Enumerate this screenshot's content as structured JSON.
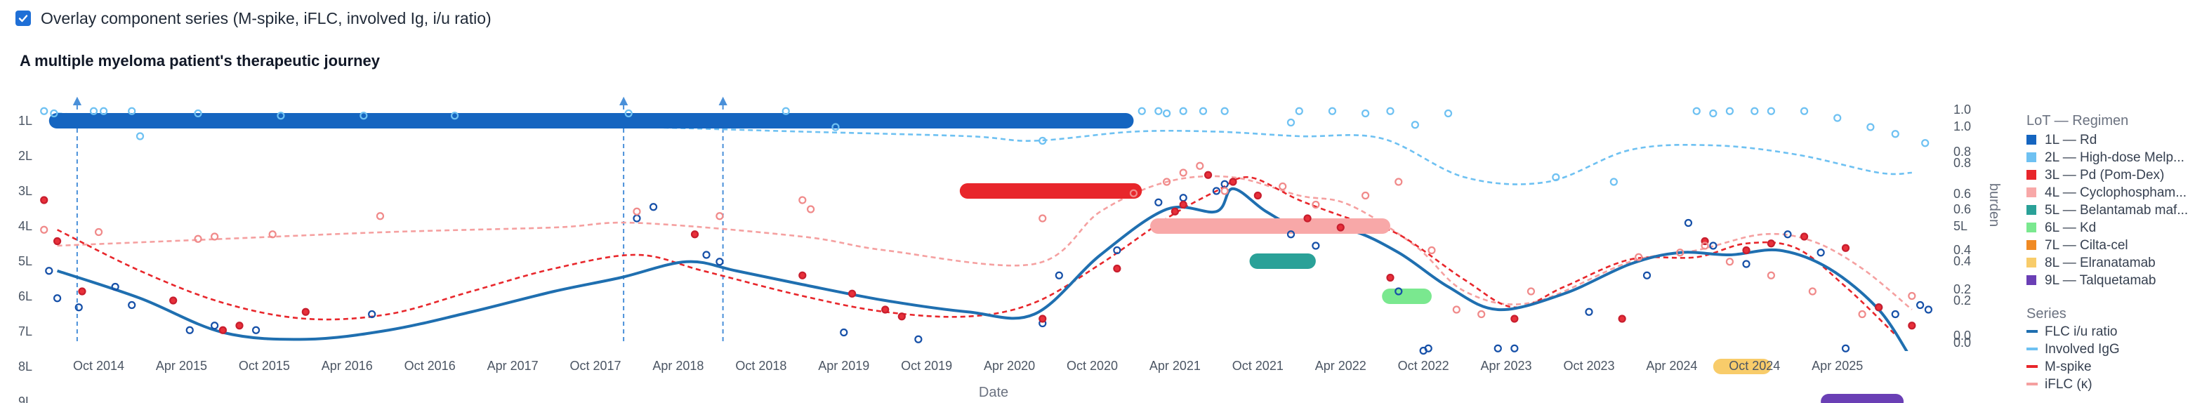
{
  "toggle": {
    "label": "Overlay component series (M-spike, iFLC, involved Ig, i/u ratio)",
    "checked": true
  },
  "chart_data": {
    "type": "line",
    "title": "A multiple myeloma patient's therapeutic journey",
    "xlabel": "Date",
    "y2label": "burden",
    "x_ticks": [
      "Oct 2014",
      "Apr 2015",
      "Oct 2015",
      "Apr 2016",
      "Oct 2016",
      "Apr 2017",
      "Oct 2017",
      "Apr 2018",
      "Oct 2018",
      "Apr 2019",
      "Oct 2019",
      "Apr 2020",
      "Oct 2020",
      "Apr 2021",
      "Oct 2021",
      "Apr 2022",
      "Oct 2022",
      "Apr 2023",
      "Oct 2023",
      "Apr 2024",
      "Oct 2024",
      "Apr 2025"
    ],
    "xlim": [
      2014.4,
      2026.0
    ],
    "lines_of_therapy": [
      "1L",
      "2L",
      "3L",
      "4L",
      "5L",
      "6L",
      "7L",
      "8L",
      "9L"
    ],
    "right_ticks": [
      "1.0",
      "1.0",
      "0.8",
      "0.8",
      "0.6",
      "0.6",
      "5L",
      "0.4",
      "0.4",
      "0.2",
      "0.2",
      "0.0",
      "0.0"
    ],
    "ylim": [
      0,
      1
    ],
    "regimen_legend_title": "LoT — Regimen",
    "regimens": [
      {
        "lot": "1L",
        "label": "1L — Rd",
        "color": "#1565c0",
        "start": 2014.45,
        "end": 2021.0
      },
      {
        "lot": "2L",
        "label": "2L — High-dose Melp...",
        "color": "#6ec1f2",
        "start": null,
        "end": null
      },
      {
        "lot": "3L",
        "label": "3L — Pd (Pom-Dex)",
        "color": "#e8262b",
        "start": 2019.95,
        "end": 2021.05
      },
      {
        "lot": "4L",
        "label": "4L — Cyclophospham...",
        "color": "#f8a8a8",
        "start": 2021.1,
        "end": 2022.55
      },
      {
        "lot": "5L",
        "label": "5L — Belantamab maf...",
        "color": "#2aa198",
        "start": 2021.7,
        "end": 2022.1
      },
      {
        "lot": "6L",
        "label": "6L — Kd",
        "color": "#7ae88f",
        "start": 2022.5,
        "end": 2022.8
      },
      {
        "lot": "7L",
        "label": "7L — Cilta-cel",
        "color": "#f08a24",
        "start": null,
        "end": null
      },
      {
        "lot": "8L",
        "label": "8L — Elranatamab",
        "color": "#f8cc6a",
        "start": 2024.5,
        "end": 2024.85
      },
      {
        "lot": "9L",
        "label": "9L — Talquetamab",
        "color": "#6a3fb5",
        "start": 2025.15,
        "end": 2025.65
      }
    ],
    "series_legend_title": "Series",
    "series": [
      {
        "name": "FLC i/u ratio",
        "color": "#1f6fb0",
        "style": "solid",
        "x": [
          2014.5,
          2015.0,
          2015.5,
          2016.0,
          2016.5,
          2017.0,
          2017.5,
          2017.9,
          2018.3,
          2018.6,
          2019.0,
          2019.5,
          2020.0,
          2020.4,
          2020.8,
          2021.2,
          2021.5,
          2021.6,
          2021.8,
          2022.0,
          2022.3,
          2022.6,
          2022.9,
          2023.2,
          2023.6,
          2024.0,
          2024.3,
          2024.6,
          2024.9,
          2025.2,
          2025.5,
          2025.7
        ],
        "y": [
          0.29,
          0.17,
          0.02,
          -0.01,
          0.03,
          0.11,
          0.2,
          0.26,
          0.33,
          0.29,
          0.23,
          0.16,
          0.11,
          0.1,
          0.36,
          0.56,
          0.55,
          0.65,
          0.55,
          0.48,
          0.47,
          0.37,
          0.22,
          0.12,
          0.19,
          0.32,
          0.37,
          0.36,
          0.38,
          0.3,
          0.12,
          -0.1
        ]
      },
      {
        "name": "Involved IgG",
        "color": "#6ec1f2",
        "style": "dashed",
        "x": [
          2014.5,
          2015.0,
          2015.5,
          2016.0,
          2017.0,
          2018.0,
          2019.0,
          2020.0,
          2020.4,
          2021.0,
          2021.5,
          2022.0,
          2022.5,
          2023.0,
          2023.5,
          2024.0,
          2024.5,
          2025.0,
          2025.5,
          2025.7
        ],
        "y": [
          0.98,
          0.96,
          0.95,
          0.94,
          0.93,
          0.92,
          0.9,
          0.88,
          0.86,
          0.9,
          0.9,
          0.88,
          0.87,
          0.7,
          0.68,
          0.82,
          0.84,
          0.8,
          0.72,
          0.72
        ]
      },
      {
        "name": "M-spike",
        "color": "#e8262b",
        "style": "dashed",
        "x": [
          2014.5,
          2015.0,
          2015.5,
          2016.0,
          2016.5,
          2017.0,
          2017.5,
          2018.0,
          2018.4,
          2019.0,
          2019.5,
          2020.0,
          2020.4,
          2020.8,
          2021.2,
          2021.5,
          2021.7,
          2022.0,
          2022.3,
          2022.6,
          2023.0,
          2023.3,
          2023.6,
          2024.0,
          2024.4,
          2024.7,
          2025.0,
          2025.3,
          2025.6
        ],
        "y": [
          0.47,
          0.29,
          0.15,
          0.08,
          0.1,
          0.2,
          0.3,
          0.36,
          0.29,
          0.18,
          0.11,
          0.09,
          0.15,
          0.32,
          0.52,
          0.64,
          0.7,
          0.6,
          0.52,
          0.45,
          0.25,
          0.13,
          0.22,
          0.34,
          0.35,
          0.41,
          0.39,
          0.22,
          0.01
        ]
      },
      {
        "name": "iFLC (κ)",
        "color": "#f5a0a0",
        "style": "dashed",
        "x": [
          2014.5,
          2015.5,
          2016.5,
          2017.5,
          2018.0,
          2019.0,
          2019.5,
          2020.4,
          2020.8,
          2021.2,
          2021.6,
          2022.0,
          2022.3,
          2022.7,
          2023.0,
          2023.4,
          2024.0,
          2024.4,
          2024.8,
          2025.1,
          2025.4,
          2025.7
        ],
        "y": [
          0.4,
          0.43,
          0.46,
          0.48,
          0.5,
          0.44,
          0.38,
          0.32,
          0.55,
          0.68,
          0.7,
          0.62,
          0.58,
          0.4,
          0.2,
          0.15,
          0.33,
          0.38,
          0.45,
          0.42,
          0.3,
          0.12
        ]
      }
    ],
    "points": {
      "lightblue": [
        [
          2014.42,
          0.99
        ],
        [
          2014.48,
          0.98
        ],
        [
          2014.72,
          0.99
        ],
        [
          2014.78,
          0.99
        ],
        [
          2014.95,
          0.99
        ],
        [
          2015.35,
          0.98
        ],
        [
          2015.85,
          0.97
        ],
        [
          2016.35,
          0.97
        ],
        [
          2016.9,
          0.97
        ],
        [
          2017.95,
          0.98
        ],
        [
          2018.9,
          0.99
        ],
        [
          2019.2,
          0.92
        ],
        [
          2020.45,
          0.86
        ],
        [
          2021.05,
          0.99
        ],
        [
          2021.15,
          0.99
        ],
        [
          2021.2,
          0.98
        ],
        [
          2021.3,
          0.99
        ],
        [
          2021.42,
          0.99
        ],
        [
          2021.55,
          0.99
        ],
        [
          2021.95,
          0.94
        ],
        [
          2022.0,
          0.99
        ],
        [
          2022.2,
          0.99
        ],
        [
          2022.4,
          0.98
        ],
        [
          2022.55,
          0.99
        ],
        [
          2022.7,
          0.93
        ],
        [
          2022.9,
          0.98
        ],
        [
          2023.55,
          0.7
        ],
        [
          2023.9,
          0.68
        ],
        [
          2024.4,
          0.99
        ],
        [
          2024.5,
          0.98
        ],
        [
          2024.6,
          0.99
        ],
        [
          2024.75,
          0.99
        ],
        [
          2024.85,
          0.99
        ],
        [
          2025.05,
          0.99
        ],
        [
          2025.25,
          0.96
        ],
        [
          2025.45,
          0.92
        ],
        [
          2025.6,
          0.89
        ],
        [
          2025.78,
          0.85
        ],
        [
          2015.0,
          0.88
        ]
      ],
      "darkblue": [
        [
          2014.45,
          0.29
        ],
        [
          2014.5,
          0.17
        ],
        [
          2014.63,
          0.13
        ],
        [
          2014.85,
          0.22
        ],
        [
          2014.95,
          0.14
        ],
        [
          2015.3,
          0.03
        ],
        [
          2015.45,
          0.05
        ],
        [
          2015.7,
          0.03
        ],
        [
          2016.4,
          0.1
        ],
        [
          2018.0,
          0.52
        ],
        [
          2018.1,
          0.57
        ],
        [
          2018.42,
          0.36
        ],
        [
          2018.5,
          0.33
        ],
        [
          2019.25,
          0.02
        ],
        [
          2019.7,
          -0.01
        ],
        [
          2020.45,
          0.06
        ],
        [
          2020.55,
          0.27
        ],
        [
          2020.9,
          0.38
        ],
        [
          2021.15,
          0.59
        ],
        [
          2021.3,
          0.61
        ],
        [
          2021.5,
          0.64
        ],
        [
          2021.55,
          0.67
        ],
        [
          2021.95,
          0.45
        ],
        [
          2022.1,
          0.4
        ],
        [
          2022.6,
          0.2
        ],
        [
          2022.75,
          -0.06
        ],
        [
          2022.78,
          -0.05
        ],
        [
          2023.2,
          -0.05
        ],
        [
          2023.3,
          -0.05
        ],
        [
          2023.75,
          0.11
        ],
        [
          2024.1,
          0.27
        ],
        [
          2024.35,
          0.5
        ],
        [
          2024.5,
          0.4
        ],
        [
          2024.7,
          0.32
        ],
        [
          2024.95,
          0.45
        ],
        [
          2025.15,
          0.37
        ],
        [
          2025.3,
          -0.05
        ],
        [
          2025.5,
          0.13
        ],
        [
          2025.6,
          0.1
        ],
        [
          2025.75,
          0.14
        ],
        [
          2025.8,
          0.12
        ]
      ],
      "red": [
        [
          2014.42,
          0.6
        ],
        [
          2014.5,
          0.42
        ],
        [
          2014.65,
          0.2
        ],
        [
          2015.2,
          0.16
        ],
        [
          2015.5,
          0.03
        ],
        [
          2015.6,
          0.05
        ],
        [
          2016.0,
          0.11
        ],
        [
          2018.35,
          0.45
        ],
        [
          2019.0,
          0.27
        ],
        [
          2019.3,
          0.19
        ],
        [
          2019.5,
          0.12
        ],
        [
          2019.6,
          0.09
        ],
        [
          2020.45,
          0.08
        ],
        [
          2020.9,
          0.3
        ],
        [
          2021.25,
          0.55
        ],
        [
          2021.3,
          0.58
        ],
        [
          2021.45,
          0.71
        ],
        [
          2021.6,
          0.68
        ],
        [
          2021.75,
          0.62
        ],
        [
          2022.05,
          0.52
        ],
        [
          2022.25,
          0.48
        ],
        [
          2022.55,
          0.26
        ],
        [
          2023.3,
          0.08
        ],
        [
          2023.95,
          0.08
        ],
        [
          2024.45,
          0.42
        ],
        [
          2024.7,
          0.38
        ],
        [
          2024.85,
          0.41
        ],
        [
          2025.05,
          0.44
        ],
        [
          2025.3,
          0.39
        ],
        [
          2025.5,
          0.13
        ],
        [
          2025.7,
          0.05
        ]
      ],
      "pink": [
        [
          2014.42,
          0.47
        ],
        [
          2014.75,
          0.46
        ],
        [
          2015.35,
          0.43
        ],
        [
          2015.45,
          0.44
        ],
        [
          2015.8,
          0.45
        ],
        [
          2016.45,
          0.53
        ],
        [
          2018.0,
          0.55
        ],
        [
          2018.5,
          0.53
        ],
        [
          2019.0,
          0.6
        ],
        [
          2019.05,
          0.56
        ],
        [
          2020.45,
          0.52
        ],
        [
          2021.0,
          0.63
        ],
        [
          2021.2,
          0.68
        ],
        [
          2021.3,
          0.72
        ],
        [
          2021.4,
          0.75
        ],
        [
          2021.55,
          0.64
        ],
        [
          2021.9,
          0.66
        ],
        [
          2022.1,
          0.58
        ],
        [
          2022.4,
          0.62
        ],
        [
          2022.6,
          0.68
        ],
        [
          2022.8,
          0.38
        ],
        [
          2022.95,
          0.12
        ],
        [
          2023.1,
          0.1
        ],
        [
          2023.4,
          0.2
        ],
        [
          2024.05,
          0.35
        ],
        [
          2024.3,
          0.37
        ],
        [
          2024.45,
          0.4
        ],
        [
          2024.6,
          0.33
        ],
        [
          2024.85,
          0.27
        ],
        [
          2025.1,
          0.2
        ],
        [
          2025.4,
          0.1
        ],
        [
          2025.7,
          0.18
        ]
      ]
    },
    "events": [
      {
        "x": 2014.62,
        "label": "▲"
      },
      {
        "x": 2017.92,
        "label": "▲"
      },
      {
        "x": 2018.52,
        "label": "▲"
      }
    ]
  }
}
